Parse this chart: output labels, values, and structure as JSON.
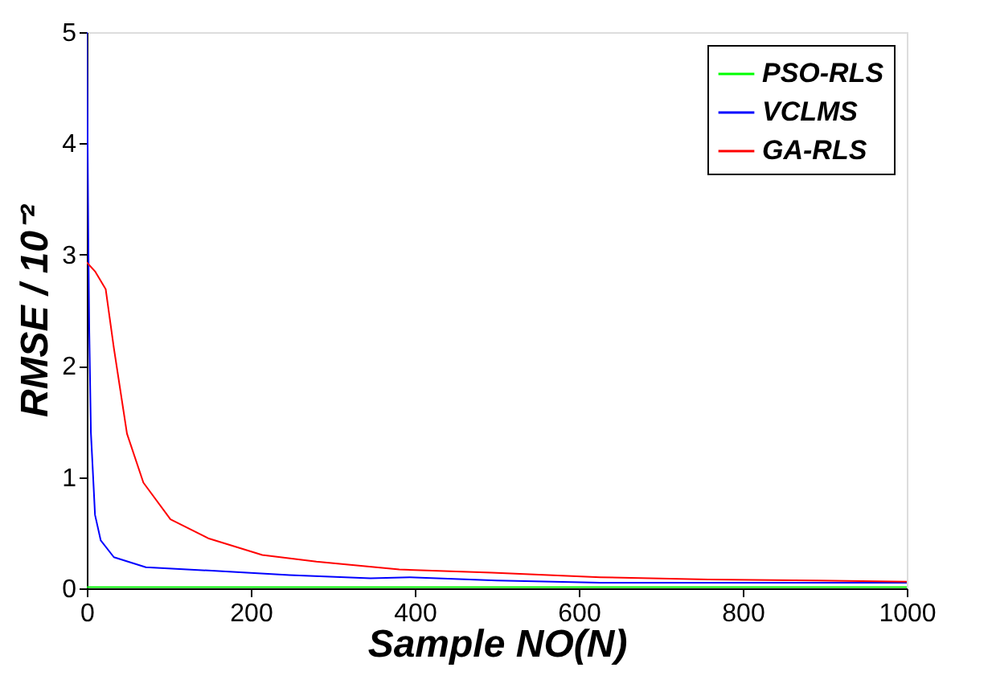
{
  "chart_data": {
    "type": "line",
    "xlabel": "Sample NO(N)",
    "ylabel": "RMSE / 10⁻²",
    "xlim": [
      0,
      1000
    ],
    "ylim": [
      0,
      5
    ],
    "xticks": [
      0,
      200,
      400,
      600,
      800,
      1000
    ],
    "yticks": [
      0,
      1,
      2,
      3,
      4,
      5
    ],
    "grid": false,
    "legend": "top right",
    "marker": "none",
    "line_style": "solid",
    "series": [
      {
        "name": "PSO-RLS",
        "color": "#00ff00",
        "x": [
          0,
          100,
          200,
          400,
          600,
          800,
          1000
        ],
        "values": [
          0.01,
          0.01,
          0.01,
          0.01,
          0.01,
          0.01,
          0.01
        ]
      },
      {
        "name": "VCLMS",
        "color": "#0000ff",
        "x": [
          0,
          1,
          2,
          3,
          5,
          10,
          17,
          33,
          72,
          148,
          247,
          346,
          394,
          500,
          626,
          800,
          1000
        ],
        "values": [
          5,
          4,
          3,
          2.3,
          1.4,
          0.66,
          0.43,
          0.28,
          0.19,
          0.16,
          0.12,
          0.09,
          0.1,
          0.07,
          0.05,
          0.05,
          0.05
        ]
      },
      {
        "name": "GA-RLS",
        "color": "#ff0000",
        "x": [
          0,
          10,
          23,
          33,
          49,
          69,
          102,
          148,
          214,
          280,
          381,
          494,
          626,
          758,
          889,
          1000
        ],
        "values": [
          2.93,
          2.85,
          2.69,
          2.16,
          1.39,
          0.95,
          0.62,
          0.45,
          0.3,
          0.24,
          0.17,
          0.14,
          0.1,
          0.08,
          0.07,
          0.06
        ]
      }
    ]
  }
}
